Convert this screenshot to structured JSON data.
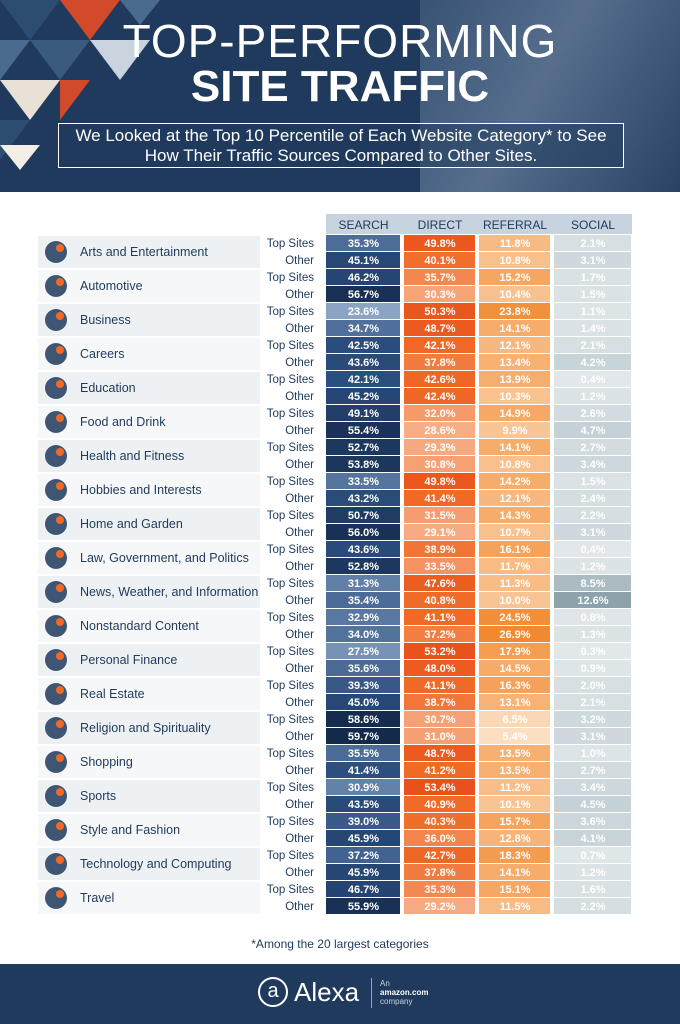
{
  "header": {
    "title_line1": "TOP-PERFORMING",
    "title_line2": "SITE TRAFFIC",
    "subtitle_line1": "We Looked at the Top 10 Percentile of Each Website Category* to See",
    "subtitle_line2": "How Their Traffic Sources Compared to Other Sites."
  },
  "footnote": "*Among the 20 largest categories",
  "footer": {
    "logo_letter": "a",
    "logo_text": "Alexa",
    "amazon_line1": "An",
    "amazon_line2": "amazon.com",
    "amazon_line3": "company"
  },
  "colors": {
    "search": "#2b4f80",
    "direct": "#f06a26",
    "referral": "#f5a25a",
    "social": "#b8c8ce",
    "navy": "#1f3a5c"
  },
  "chart_data": {
    "type": "table",
    "columns": [
      "SEARCH",
      "DIRECT",
      "REFERRAL",
      "SOCIAL"
    ],
    "row_labels": [
      "Top Sites",
      "Other"
    ],
    "categories": [
      {
        "name": "Arts and Entertainment",
        "icon": "theater-masks-icon",
        "top": [
          "35.3%",
          "49.8%",
          "11.8%",
          "2.1%"
        ],
        "other": [
          "45.1%",
          "40.1%",
          "10.8%",
          "3.1%"
        ]
      },
      {
        "name": "Automotive",
        "icon": "steering-wheel-icon",
        "top": [
          "46.2%",
          "35.7%",
          "15.2%",
          "1.7%"
        ],
        "other": [
          "56.7%",
          "30.3%",
          "10.4%",
          "1.5%"
        ]
      },
      {
        "name": "Business",
        "icon": "trend-chart-icon",
        "top": [
          "23.6%",
          "50.3%",
          "23.8%",
          "1.1%"
        ],
        "other": [
          "34.7%",
          "48.7%",
          "14.1%",
          "1.4%"
        ]
      },
      {
        "name": "Careers",
        "icon": "briefcase-icon",
        "top": [
          "42.5%",
          "42.1%",
          "12.1%",
          "2.1%"
        ],
        "other": [
          "43.6%",
          "37.8%",
          "13.4%",
          "4.2%"
        ]
      },
      {
        "name": "Education",
        "icon": "graduation-cap-icon",
        "top": [
          "42.1%",
          "42.6%",
          "13.9%",
          "0.4%"
        ],
        "other": [
          "45.2%",
          "42.4%",
          "10.3%",
          "1.2%"
        ]
      },
      {
        "name": "Food and Drink",
        "icon": "food-cloche-icon",
        "top": [
          "49.1%",
          "32.0%",
          "14.9%",
          "2.6%"
        ],
        "other": [
          "55.4%",
          "28.6%",
          "9.9%",
          "4.7%"
        ]
      },
      {
        "name": "Health and Fitness",
        "icon": "heartbeat-icon",
        "top": [
          "52.7%",
          "29.3%",
          "14.1%",
          "2.7%"
        ],
        "other": [
          "53.8%",
          "30.8%",
          "10.8%",
          "3.4%"
        ]
      },
      {
        "name": "Hobbies and Interests",
        "icon": "knitting-icon",
        "top": [
          "33.5%",
          "49.8%",
          "14.2%",
          "1.5%"
        ],
        "other": [
          "43.2%",
          "41.4%",
          "12.1%",
          "2.4%"
        ]
      },
      {
        "name": "Home and Garden",
        "icon": "house-icon",
        "top": [
          "50.7%",
          "31.5%",
          "14.3%",
          "2.2%"
        ],
        "other": [
          "56.0%",
          "29.1%",
          "10.7%",
          "3.1%"
        ]
      },
      {
        "name": "Law, Government, and Politics",
        "icon": "courthouse-icon",
        "top": [
          "43.6%",
          "38.9%",
          "16.1%",
          "0.4%"
        ],
        "other": [
          "52.8%",
          "33.5%",
          "11.7%",
          "1.2%"
        ]
      },
      {
        "name": "News, Weather, and Information",
        "icon": "newspaper-icon",
        "top": [
          "31.3%",
          "47.6%",
          "11.3%",
          "8.5%"
        ],
        "other": [
          "35.4%",
          "40.8%",
          "10.0%",
          "12.6%"
        ]
      },
      {
        "name": "Nonstandard Content",
        "icon": "document-chat-icon",
        "top": [
          "32.9%",
          "41.1%",
          "24.5%",
          "0.8%"
        ],
        "other": [
          "34.0%",
          "37.2%",
          "26.9%",
          "1.3%"
        ]
      },
      {
        "name": "Personal Finance",
        "icon": "dollar-magnifier-icon",
        "top": [
          "27.5%",
          "53.2%",
          "17.9%",
          "0.3%"
        ],
        "other": [
          "35.6%",
          "48.0%",
          "14.5%",
          "0.9%"
        ]
      },
      {
        "name": "Real Estate",
        "icon": "house-roof-icon",
        "top": [
          "39.3%",
          "41.1%",
          "16.3%",
          "2.0%"
        ],
        "other": [
          "45.0%",
          "38.7%",
          "13.1%",
          "2.1%"
        ]
      },
      {
        "name": "Religion and Spirituality",
        "icon": "praying-hands-icon",
        "top": [
          "58.6%",
          "30.7%",
          "6.5%",
          "3.2%"
        ],
        "other": [
          "59.7%",
          "31.0%",
          "5.4%",
          "3.1%"
        ]
      },
      {
        "name": "Shopping",
        "icon": "shopping-bag-icon",
        "top": [
          "35.5%",
          "48.7%",
          "13.5%",
          "1.0%"
        ],
        "other": [
          "41.4%",
          "41.2%",
          "13.5%",
          "2.7%"
        ]
      },
      {
        "name": "Sports",
        "icon": "trophy-icon",
        "top": [
          "30.9%",
          "53.4%",
          "11.2%",
          "3.4%"
        ],
        "other": [
          "43.5%",
          "40.9%",
          "10.1%",
          "4.5%"
        ]
      },
      {
        "name": "Style and Fashion",
        "icon": "hanger-icon",
        "top": [
          "39.0%",
          "40.3%",
          "15.7%",
          "3.6%"
        ],
        "other": [
          "45.9%",
          "36.0%",
          "12.8%",
          "4.1%"
        ]
      },
      {
        "name": "Technology and Computing",
        "icon": "circuit-icon",
        "top": [
          "37.2%",
          "42.7%",
          "18.3%",
          "0.7%"
        ],
        "other": [
          "45.9%",
          "37.8%",
          "14.1%",
          "1.2%"
        ]
      },
      {
        "name": "Travel",
        "icon": "suitcase-icon",
        "top": [
          "46.7%",
          "35.3%",
          "15.1%",
          "1.6%"
        ],
        "other": [
          "55.9%",
          "29.2%",
          "11.5%",
          "2.2%"
        ]
      }
    ]
  }
}
